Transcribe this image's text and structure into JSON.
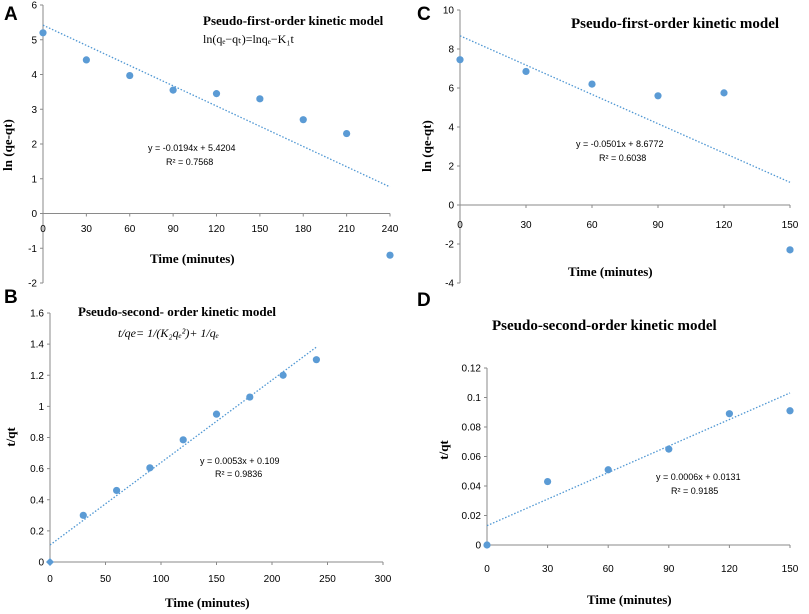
{
  "chart_data": [
    {
      "panel": "A",
      "type": "scatter",
      "title": "Pseudo-first-order kinetic model",
      "equation": "ln(qₑ−qₜ)=lnqₑ−K₁t",
      "xlabel": "Time (minutes)",
      "ylabel": "ln (qe-qt)",
      "xlim": [
        0,
        240
      ],
      "ylim": [
        -2,
        6
      ],
      "xticks": [
        "0",
        "30",
        "60",
        "90",
        "120",
        "150",
        "180",
        "210",
        "240"
      ],
      "yticks": [
        "-2",
        "-1",
        "0",
        "1",
        "2",
        "3",
        "4",
        "5",
        "6"
      ],
      "x": [
        0,
        30,
        60,
        90,
        120,
        150,
        180,
        210,
        240
      ],
      "y": [
        5.2,
        4.42,
        3.97,
        3.55,
        3.45,
        3.3,
        2.7,
        2.3,
        -1.2
      ],
      "trendline": {
        "slope": -0.0194,
        "intercept": 5.4204,
        "x_range": [
          0,
          240
        ]
      },
      "annotation_eq": "y = -0.0194x + 5.4204",
      "annotation_r2": "R² = 0.7568"
    },
    {
      "panel": "B",
      "type": "scatter",
      "title": "Pseudo-second- order kinetic model",
      "equation": "t/qe= 1/(K₂qₑ²)+ 1/qₑ",
      "xlabel": "Time (minutes)",
      "ylabel": "t/qt",
      "xlim": [
        0,
        300
      ],
      "ylim": [
        0,
        1.6
      ],
      "xticks": [
        "0",
        "50",
        "100",
        "150",
        "200",
        "250",
        "300"
      ],
      "yticks": [
        "0",
        "0.2",
        "0.4",
        "0.6",
        "0.8",
        "1",
        "1.2",
        "1.4",
        "1.6"
      ],
      "x": [
        0,
        30,
        60,
        90,
        120,
        150,
        180,
        210,
        240
      ],
      "y": [
        0,
        0.3,
        0.46,
        0.605,
        0.785,
        0.95,
        1.06,
        1.2,
        1.3
      ],
      "trendline": {
        "slope": 0.0053,
        "intercept": 0.109,
        "x_range": [
          0,
          240
        ]
      },
      "annotation_eq": "y = 0.0053x + 0.109",
      "annotation_r2": "R² = 0.9836"
    },
    {
      "panel": "C",
      "type": "scatter",
      "title": "Pseudo-first-order kinetic model",
      "equation": "",
      "xlabel": "Time (minutes)",
      "ylabel": "ln (qe-qt)",
      "xlim": [
        0,
        150
      ],
      "ylim": [
        -4,
        10
      ],
      "xticks": [
        "0",
        "30",
        "60",
        "90",
        "120",
        "150"
      ],
      "yticks": [
        "-4",
        "-2",
        "0",
        "2",
        "4",
        "6",
        "8",
        "10"
      ],
      "x": [
        0,
        30,
        60,
        90,
        120,
        150
      ],
      "y": [
        7.45,
        6.85,
        6.2,
        5.6,
        5.75,
        -2.3
      ],
      "trendline": {
        "slope": -0.0501,
        "intercept": 8.6772,
        "x_range": [
          0,
          150
        ]
      },
      "annotation_eq": "y = -0.0501x + 8.6772",
      "annotation_r2": "R² = 0.6038"
    },
    {
      "panel": "D",
      "type": "scatter",
      "title": "Pseudo-second-order kinetic model",
      "equation": "",
      "xlabel": "Time (minutes)",
      "ylabel": "t/qt",
      "xlim": [
        0,
        150
      ],
      "ylim": [
        0,
        0.12
      ],
      "xticks": [
        "0",
        "30",
        "60",
        "90",
        "120",
        "150"
      ],
      "yticks": [
        "0",
        "0.02",
        "0.04",
        "0.06",
        "0.08",
        "0.1",
        "0.12"
      ],
      "x": [
        0,
        30,
        60,
        90,
        120,
        150
      ],
      "y": [
        0,
        0.043,
        0.051,
        0.065,
        0.089,
        0.091
      ],
      "trendline": {
        "slope": 0.0006,
        "intercept": 0.0131,
        "x_range": [
          0,
          150
        ]
      },
      "annotation_eq": "y = 0.0006x + 0.0131",
      "annotation_r2": "R² = 0.9185"
    }
  ],
  "colors": {
    "point": "#5b9bd5",
    "trendline": "#4f97d3",
    "axis": "#8a8a8a"
  }
}
